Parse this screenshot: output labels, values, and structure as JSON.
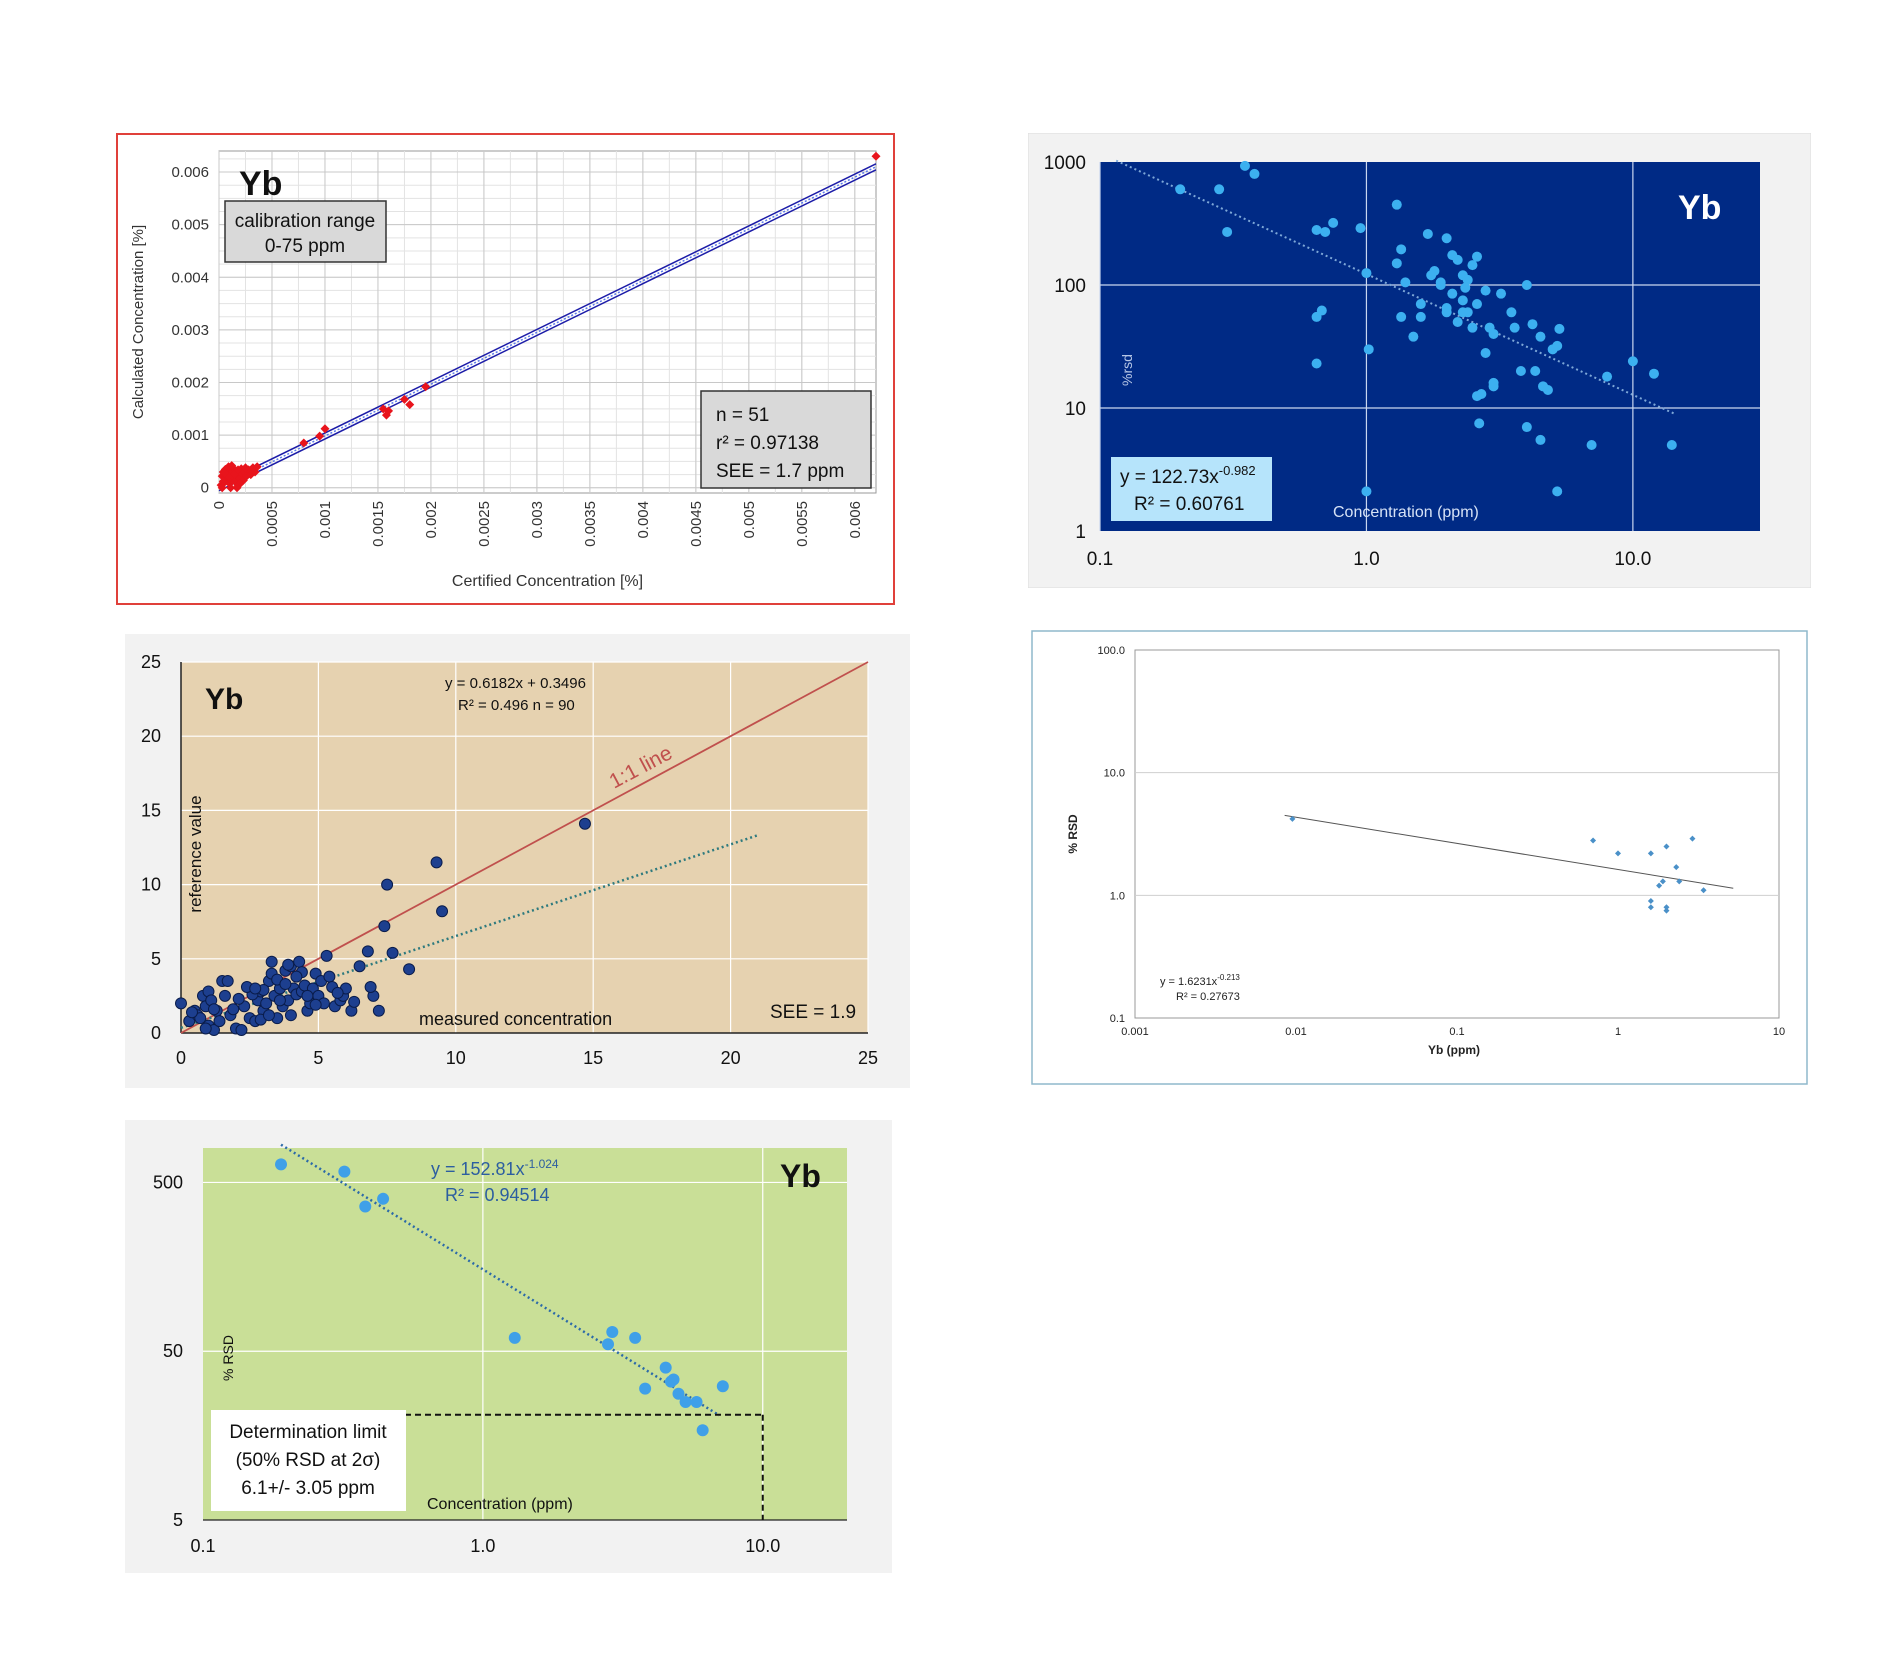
{
  "chart_data": [
    {
      "id": "p1",
      "type": "scatter",
      "element_label": "Yb",
      "xlabel": "Certified Concentration [%]",
      "ylabel": "Calculated Concentration [%]",
      "xlim": [
        0,
        0.0062
      ],
      "ylim": [
        -0.0001,
        0.0064
      ],
      "x_ticks": [
        "0",
        "0.0005",
        "0.001",
        "0.0015",
        "0.002",
        "0.0025",
        "0.003",
        "0.0035",
        "0.004",
        "0.0045",
        "0.005",
        "0.0055",
        "0.006"
      ],
      "y_ticks": [
        "0",
        "0.001",
        "0.002",
        "0.003",
        "0.004",
        "0.005",
        "0.006"
      ],
      "grid": true,
      "note_lines": [
        "calibration range",
        "0-75 ppm"
      ],
      "stats_lines": [
        "n = 51",
        "r² = 0.97138",
        "SEE = 1.7 ppm"
      ],
      "colors": {
        "points": "#e8141c",
        "fit": "#1c1ca8",
        "frame": "#e0403a"
      },
      "points": [
        [
          2e-05,
          5e-05
        ],
        [
          3e-05,
          0.00022
        ],
        [
          4e-05,
          0.0003
        ],
        [
          5e-05,
          0.0001
        ],
        [
          6e-05,
          0.00018
        ],
        [
          7e-05,
          0.00025
        ],
        [
          8e-05,
          0.00033
        ],
        [
          9e-05,
          0.0004
        ],
        [
          0.0001,
          8e-05
        ],
        [
          0.00011,
          0.00015
        ],
        [
          0.00012,
          0.00028
        ],
        [
          0.00013,
          0.00038
        ],
        [
          0.00014,
          0.0002
        ],
        [
          0.00015,
          0.00012
        ],
        [
          0.00016,
          0.00032
        ],
        [
          0.00017,
          0.00024
        ],
        [
          0.00018,
          5e-05
        ],
        [
          0.00019,
          0.0003
        ],
        [
          0.0002,
          0.00018
        ],
        [
          0.00021,
          0.00036
        ],
        [
          0.00022,
          0.00026
        ],
        [
          0.00023,
          0.00014
        ],
        [
          0.00024,
          0.0003
        ],
        [
          0.00026,
          0.00022
        ],
        [
          0.00028,
          0.00034
        ],
        [
          0.0003,
          0.00025
        ],
        [
          0.00032,
          0.00038
        ],
        [
          0.00034,
          0.0003
        ],
        [
          0.00036,
          0.0004
        ],
        [
          4e-05,
          0.00012
        ],
        [
          6e-05,
          0.00035
        ],
        [
          9e-05,
          0.00022
        ],
        [
          0.00012,
          0.00042
        ],
        [
          0.00015,
          0.00026
        ],
        [
          0.00018,
          0.00034
        ],
        [
          0.0002,
          8e-05
        ],
        [
          0.00025,
          0.00038
        ],
        [
          3e-05,
          0.0
        ],
        [
          0.00011,
          0.0
        ],
        [
          0.00017,
          0.0
        ],
        [
          0.0008,
          0.00085
        ],
        [
          0.00095,
          0.00098
        ],
        [
          0.001,
          0.00112
        ],
        [
          0.0016,
          0.00146
        ],
        [
          0.00158,
          0.00138
        ],
        [
          0.0018,
          0.00158
        ],
        [
          0.00175,
          0.00168
        ],
        [
          0.00195,
          0.00192
        ],
        [
          0.00155,
          0.0015
        ],
        [
          5e-05,
          0.00028
        ],
        [
          0.0062,
          0.0063
        ]
      ]
    },
    {
      "id": "p2",
      "type": "scatter",
      "element_label": "Yb",
      "xlabel": "Concentration (ppm)",
      "ylabel": "%rsd",
      "xscale": "log",
      "yscale": "log",
      "xlim": [
        0.1,
        30
      ],
      "ylim": [
        1,
        1000
      ],
      "x_ticks": [
        "0.1",
        "1.0",
        "10.0"
      ],
      "y_ticks": [
        "1",
        "10",
        "100",
        "1000"
      ],
      "grid": true,
      "equation": "y = 122.73x",
      "equation_exp": "-0.982",
      "r2": "R² = 0.60761",
      "fit": {
        "a": 122.73,
        "b": -0.982
      },
      "colors": {
        "bg": "#002a85",
        "points": "#3cb0f0",
        "fit": "#7ea8d8",
        "label_box": "#b6e4fb"
      },
      "points": [
        [
          0.2,
          600
        ],
        [
          0.28,
          600
        ],
        [
          0.3,
          270
        ],
        [
          0.35,
          930
        ],
        [
          0.38,
          800
        ],
        [
          0.65,
          280
        ],
        [
          0.7,
          270
        ],
        [
          0.75,
          320
        ],
        [
          0.65,
          55
        ],
        [
          0.68,
          62
        ],
        [
          0.65,
          23
        ],
        [
          0.95,
          290
        ],
        [
          1.0,
          125
        ],
        [
          1.02,
          30
        ],
        [
          1.0,
          2.1
        ],
        [
          1.3,
          150
        ],
        [
          1.35,
          195
        ],
        [
          1.3,
          450
        ],
        [
          1.4,
          105
        ],
        [
          1.35,
          55
        ],
        [
          1.5,
          38
        ],
        [
          1.6,
          70
        ],
        [
          1.6,
          55
        ],
        [
          1.7,
          260
        ],
        [
          1.8,
          130
        ],
        [
          1.75,
          120
        ],
        [
          1.9,
          100
        ],
        [
          2.0,
          240
        ],
        [
          2.1,
          175
        ],
        [
          2.2,
          160
        ],
        [
          2.3,
          120
        ],
        [
          2.4,
          110
        ],
        [
          2.5,
          145
        ],
        [
          2.6,
          170
        ],
        [
          2.0,
          60
        ],
        [
          2.1,
          85
        ],
        [
          2.2,
          50
        ],
        [
          2.3,
          75
        ],
        [
          2.4,
          60
        ],
        [
          2.6,
          70
        ],
        [
          2.8,
          90
        ],
        [
          2.5,
          45
        ],
        [
          2.9,
          45
        ],
        [
          3.0,
          40
        ],
        [
          2.8,
          28
        ],
        [
          3.0,
          16
        ],
        [
          2.7,
          13
        ],
        [
          2.6,
          12.5
        ],
        [
          2.65,
          7.5
        ],
        [
          3.5,
          60
        ],
        [
          3.6,
          45
        ],
        [
          4.0,
          100
        ],
        [
          4.2,
          48
        ],
        [
          4.5,
          38
        ],
        [
          3.8,
          20
        ],
        [
          4.3,
          20
        ],
        [
          4.6,
          15
        ],
        [
          4.8,
          14
        ],
        [
          5.0,
          30
        ],
        [
          5.2,
          32
        ],
        [
          5.3,
          44
        ],
        [
          4.0,
          7
        ],
        [
          4.5,
          5.5
        ],
        [
          5.2,
          2.1
        ],
        [
          7.0,
          5
        ],
        [
          8.0,
          18
        ],
        [
          10.0,
          24
        ],
        [
          12.0,
          19
        ],
        [
          14.0,
          5
        ],
        [
          2.3,
          60
        ],
        [
          2.0,
          65
        ],
        [
          3.0,
          15
        ],
        [
          1.9,
          105
        ],
        [
          2.35,
          95
        ],
        [
          3.2,
          85
        ]
      ]
    },
    {
      "id": "p3",
      "type": "scatter",
      "element_label": "Yb",
      "xlabel": "measured concentration",
      "ylabel": "reference value",
      "xlim": [
        0,
        25
      ],
      "ylim": [
        0,
        25
      ],
      "x_ticks": [
        "0",
        "5",
        "10",
        "15",
        "20",
        "25"
      ],
      "y_ticks": [
        "0",
        "5",
        "10",
        "15",
        "20",
        "25"
      ],
      "grid": true,
      "equation": "y = 0.6182x + 0.3496",
      "r2_n": "R² = 0.496   n = 90",
      "one_to_one_label": "1:1 line",
      "see": "SEE = 1.9",
      "fit": {
        "slope": 0.6182,
        "intercept": 0.3496,
        "x_end": 21
      },
      "colors": {
        "bg": "#e6d2b0",
        "points": "#1d3f8f",
        "one_to_one": "#c0504d",
        "fit": "#2e7a7e"
      },
      "points": [
        [
          0,
          2.0
        ],
        [
          0.3,
          0.8
        ],
        [
          0.5,
          1.5
        ],
        [
          0.6,
          1.2
        ],
        [
          0.8,
          2.5
        ],
        [
          0.9,
          1.8
        ],
        [
          1.0,
          0.5
        ],
        [
          1.0,
          2.8
        ],
        [
          1.1,
          2.2
        ],
        [
          1.2,
          0.2
        ],
        [
          1.3,
          1.5
        ],
        [
          1.4,
          0.8
        ],
        [
          1.5,
          3.5
        ],
        [
          1.7,
          3.5
        ],
        [
          1.8,
          1.2
        ],
        [
          2.0,
          0.3
        ],
        [
          2.2,
          0.2
        ],
        [
          2.3,
          1.8
        ],
        [
          2.5,
          1.0
        ],
        [
          2.7,
          0.8
        ],
        [
          2.8,
          2.2
        ],
        [
          2.9,
          2.8
        ],
        [
          3.0,
          1.5
        ],
        [
          3.1,
          2.0
        ],
        [
          3.2,
          3.5
        ],
        [
          3.3,
          4.0
        ],
        [
          3.3,
          4.8
        ],
        [
          3.4,
          2.5
        ],
        [
          3.5,
          1.0
        ],
        [
          3.6,
          3.0
        ],
        [
          3.7,
          1.8
        ],
        [
          3.8,
          4.2
        ],
        [
          3.9,
          2.2
        ],
        [
          4.0,
          4.5
        ],
        [
          4.0,
          1.2
        ],
        [
          4.1,
          3.0
        ],
        [
          4.2,
          2.6
        ],
        [
          4.3,
          4.8
        ],
        [
          4.4,
          2.8
        ],
        [
          4.5,
          3.2
        ],
        [
          4.6,
          1.5
        ],
        [
          4.7,
          2.0
        ],
        [
          4.8,
          3.0
        ],
        [
          4.9,
          4.0
        ],
        [
          5.0,
          2.5
        ],
        [
          5.1,
          3.5
        ],
        [
          5.2,
          2.0
        ],
        [
          5.3,
          5.2
        ],
        [
          5.4,
          3.8
        ],
        [
          5.6,
          1.8
        ],
        [
          5.8,
          2.2
        ],
        [
          5.9,
          2.5
        ],
        [
          6.0,
          3.0
        ],
        [
          6.2,
          1.5
        ],
        [
          6.5,
          4.5
        ],
        [
          6.8,
          5.5
        ],
        [
          7.0,
          2.5
        ],
        [
          7.2,
          1.5
        ],
        [
          7.4,
          7.2
        ],
        [
          7.5,
          10.0
        ],
        [
          7.7,
          5.4
        ],
        [
          8.3,
          4.3
        ],
        [
          9.3,
          11.5
        ],
        [
          9.5,
          8.2
        ],
        [
          14.7,
          14.1
        ],
        [
          3.0,
          2.9
        ],
        [
          3.5,
          3.6
        ],
        [
          4.4,
          4.1
        ],
        [
          2.6,
          2.6
        ],
        [
          1.9,
          1.6
        ],
        [
          0.7,
          1.0
        ],
        [
          1.2,
          1.6
        ],
        [
          2.4,
          3.1
        ],
        [
          3.6,
          2.2
        ],
        [
          4.9,
          1.9
        ],
        [
          6.9,
          3.1
        ],
        [
          0.4,
          1.4
        ],
        [
          2.9,
          0.9
        ],
        [
          3.8,
          3.3
        ],
        [
          4.6,
          2.5
        ],
        [
          5.5,
          3.1
        ],
        [
          6.3,
          2.1
        ],
        [
          1.6,
          2.5
        ],
        [
          3.2,
          1.2
        ],
        [
          2.1,
          2.3
        ],
        [
          4.2,
          3.8
        ],
        [
          0.9,
          0.3
        ],
        [
          3.9,
          4.6
        ],
        [
          5.7,
          2.7
        ],
        [
          2.7,
          3.0
        ]
      ]
    },
    {
      "id": "p4",
      "type": "scatter",
      "element_label": "",
      "xlabel": "Yb (ppm)",
      "ylabel": "% RSD",
      "xscale": "log",
      "yscale": "log",
      "xlim": [
        0.001,
        10
      ],
      "ylim": [
        0.1,
        100
      ],
      "x_ticks": [
        "0.001",
        "0.01",
        "0.1",
        "1",
        "10"
      ],
      "y_ticks": [
        "0.1",
        "1.0",
        "10.0",
        "100.0"
      ],
      "grid": true,
      "equation": "y = 1.6231x",
      "equation_exp": "-0.213",
      "r2": "R² = 0.27673",
      "fit": {
        "a": 1.6231,
        "b": -0.213,
        "x_from": 0.0085,
        "x_to": 5.2
      },
      "colors": {
        "points": "#4a90c8",
        "fit": "#555555",
        "frame": "#8fb8cc"
      },
      "points": [
        [
          0.0095,
          4.2
        ],
        [
          0.7,
          2.8
        ],
        [
          1.0,
          2.2
        ],
        [
          1.6,
          2.2
        ],
        [
          2.0,
          2.5
        ],
        [
          2.3,
          1.7
        ],
        [
          2.9,
          2.9
        ],
        [
          1.6,
          0.9
        ],
        [
          1.6,
          0.8
        ],
        [
          2.0,
          0.8
        ],
        [
          1.8,
          1.2
        ],
        [
          1.9,
          1.3
        ],
        [
          2.4,
          1.3
        ],
        [
          3.4,
          1.1
        ],
        [
          2.0,
          0.75
        ]
      ]
    },
    {
      "id": "p5",
      "type": "scatter",
      "element_label": "Yb",
      "xlabel": "Concentration (ppm)",
      "ylabel": "% RSD",
      "xscale": "log",
      "yscale": "log",
      "xlim": [
        0.1,
        20
      ],
      "ylim": [
        5,
        800
      ],
      "x_ticks": [
        "0.1",
        "1.0",
        "10.0"
      ],
      "y_ticks": [
        "5",
        "50",
        "500"
      ],
      "grid": true,
      "equation": "y = 152.81x",
      "equation_exp": "-1.024",
      "r2": "R² = 0.94514",
      "fit": {
        "a": 152.81,
        "b": -1.024,
        "x_from": 0.19,
        "x_to": 7.0
      },
      "limit_lines": [
        "Determination limit",
        "(50% RSD at 2σ)",
        "6.1+/- 3.05 ppm"
      ],
      "limit": {
        "x": 10,
        "y": 21
      },
      "colors": {
        "bg": "#c9df97",
        "points": "#3fa0e8",
        "fit": "#2c6aa8"
      },
      "points": [
        [
          0.19,
          640
        ],
        [
          0.32,
          580
        ],
        [
          0.38,
          360
        ],
        [
          0.44,
          400
        ],
        [
          1.3,
          60
        ],
        [
          2.8,
          55
        ],
        [
          2.9,
          65
        ],
        [
          3.5,
          60
        ],
        [
          3.8,
          30
        ],
        [
          4.5,
          40
        ],
        [
          4.7,
          33
        ],
        [
          4.8,
          34
        ],
        [
          5.0,
          28
        ],
        [
          5.3,
          25
        ],
        [
          5.8,
          25
        ],
        [
          6.1,
          17
        ],
        [
          7.2,
          31
        ]
      ]
    }
  ]
}
